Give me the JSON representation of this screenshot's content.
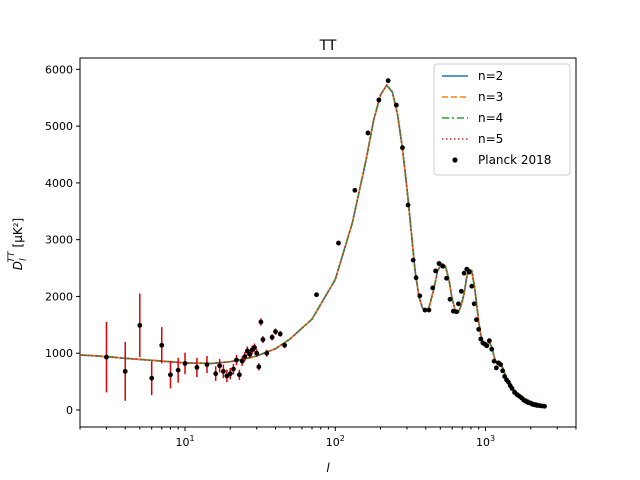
{
  "chart_data": {
    "type": "line",
    "title": "TT",
    "xlabel": "l",
    "ylabel_main": "D",
    "ylabel_sub": "l",
    "ylabel_sup": "TT",
    "ylabel_unit": "[μK²]",
    "xscale": "log",
    "xlim": [
      2,
      4000
    ],
    "ylim": [
      -300,
      6200
    ],
    "yticks": [
      0,
      1000,
      2000,
      3000,
      4000,
      5000,
      6000
    ],
    "xticks": [
      {
        "value": 10,
        "base": "10",
        "exp": "1"
      },
      {
        "value": 100,
        "base": "10",
        "exp": "2"
      },
      {
        "value": 1000,
        "base": "10",
        "exp": "3"
      }
    ],
    "legend_position": "top-right",
    "series": [
      {
        "name": "n=2",
        "color": "#1f77b4",
        "style": "solid"
      },
      {
        "name": "n=3",
        "color": "#ff7f0e",
        "style": "dashed"
      },
      {
        "name": "n=4",
        "color": "#2ca02c",
        "style": "dashdot"
      },
      {
        "name": "n=5",
        "color": "#d62728",
        "style": "dotted"
      }
    ],
    "model_curve": {
      "x": [
        2,
        3,
        4,
        5,
        7,
        10,
        15,
        20,
        25,
        30,
        40,
        50,
        70,
        100,
        130,
        160,
        180,
        200,
        220,
        240,
        260,
        280,
        300,
        320,
        340,
        360,
        380,
        400,
        420,
        450,
        480,
        510,
        540,
        570,
        600,
        630,
        660,
        690,
        720,
        750,
        780,
        810,
        840,
        870,
        900,
        930,
        960,
        990,
        1020,
        1060,
        1100,
        1150,
        1200,
        1250,
        1300,
        1350,
        1400,
        1450,
        1500,
        1600,
        1700,
        1800,
        1900,
        2000,
        2100,
        2200,
        2300,
        2400,
        2500
      ],
      "y": [
        970,
        940,
        910,
        890,
        860,
        830,
        820,
        850,
        900,
        950,
        1080,
        1250,
        1600,
        2300,
        3300,
        4400,
        5100,
        5550,
        5720,
        5600,
        5200,
        4600,
        3900,
        3150,
        2450,
        2000,
        1800,
        1740,
        1800,
        2100,
        2450,
        2580,
        2540,
        2300,
        1950,
        1750,
        1720,
        1850,
        2050,
        2350,
        2480,
        2450,
        2200,
        1900,
        1550,
        1320,
        1200,
        1130,
        1150,
        1200,
        1100,
        900,
        800,
        790,
        750,
        620,
        520,
        470,
        400,
        320,
        260,
        210,
        180,
        150,
        130,
        120,
        100,
        80,
        70
      ]
    },
    "data_label": "Planck 2018",
    "data_points": {
      "x": [
        3,
        4,
        5,
        6,
        7,
        8,
        9,
        10,
        12,
        14,
        16,
        17,
        18,
        19,
        20,
        21,
        22,
        23,
        24,
        25,
        26,
        27,
        28,
        29,
        30,
        31,
        32,
        33,
        35,
        38,
        40,
        43,
        46,
        75,
        105,
        135,
        165,
        195,
        225,
        255,
        280,
        305,
        330,
        345,
        365,
        395,
        420,
        445,
        465,
        490,
        520,
        550,
        580,
        610,
        640,
        660,
        690,
        720,
        750,
        780,
        810,
        840,
        870,
        900,
        930,
        960,
        990,
        1020,
        1060,
        1100,
        1140,
        1180,
        1220,
        1260,
        1300,
        1340,
        1380,
        1420,
        1460,
        1500,
        1560,
        1620,
        1680,
        1740,
        1800,
        1860,
        1920,
        1980,
        2050,
        2120,
        2200,
        2290,
        2380,
        2470
      ],
      "y": [
        930,
        680,
        1490,
        560,
        1140,
        620,
        700,
        820,
        750,
        800,
        640,
        780,
        680,
        600,
        640,
        720,
        880,
        620,
        860,
        940,
        1040,
        980,
        1060,
        1100,
        1000,
        760,
        1550,
        1240,
        1000,
        1280,
        1380,
        1340,
        1140,
        2030,
        2940,
        3870,
        4880,
        5460,
        5800,
        5370,
        4620,
        3610,
        2640,
        2330,
        2010,
        1760,
        1760,
        2150,
        2450,
        2580,
        2530,
        2320,
        1950,
        1740,
        1730,
        1870,
        2090,
        2410,
        2480,
        2430,
        2180,
        1870,
        1590,
        1420,
        1250,
        1180,
        1160,
        1130,
        1220,
        1070,
        860,
        740,
        830,
        800,
        690,
        590,
        530,
        490,
        430,
        380,
        310,
        270,
        240,
        210,
        170,
        150,
        130,
        120,
        100,
        90,
        80,
        75,
        70,
        65
      ],
      "err": [
        620,
        520,
        560,
        300,
        320,
        240,
        220,
        190,
        170,
        150,
        130,
        120,
        120,
        110,
        100,
        95,
        90,
        90,
        85,
        80,
        80,
        75,
        75,
        70,
        70,
        65,
        65,
        60,
        60,
        55,
        55,
        50,
        50,
        40,
        40,
        40,
        40,
        40,
        40,
        40,
        40,
        35,
        35,
        35,
        35,
        30,
        30,
        30,
        30,
        30,
        30,
        30,
        30,
        30,
        30,
        30,
        30,
        30,
        30,
        30,
        30,
        30,
        30,
        30,
        30,
        30,
        30,
        30,
        30,
        30,
        30,
        30,
        30,
        30,
        30,
        30,
        30,
        30,
        30,
        30,
        30,
        30,
        30,
        30,
        30,
        30,
        30,
        30,
        30,
        30,
        30,
        30,
        30,
        30
      ]
    },
    "grid": false
  }
}
